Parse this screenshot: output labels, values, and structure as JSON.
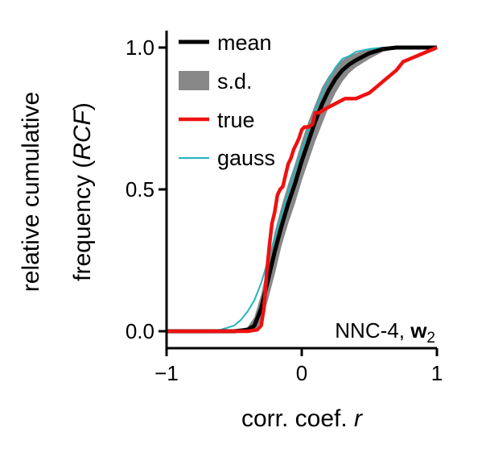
{
  "chart_data": {
    "type": "line",
    "xlabel_main": "corr. coef. ",
    "xlabel_var": "r",
    "ylabel_line1": "relative cumulative",
    "ylabel_line2_pre": "frequency (",
    "ylabel_line2_var": "RCF",
    "ylabel_line2_post": ")",
    "xlim": [
      -1,
      1
    ],
    "ylim": [
      -0.05,
      1.05
    ],
    "xticks": [
      -1,
      0,
      1
    ],
    "xtick_labels": [
      "−1",
      "0",
      "1"
    ],
    "yticks": [
      0.0,
      0.5,
      1.0
    ],
    "ytick_labels": [
      "0.0",
      "0.5",
      "1.0"
    ],
    "grid": false,
    "legend_position": "top-left",
    "annotation_text": "NNC-4, ",
    "annotation_bold": "w",
    "annotation_sub": "2",
    "colors": {
      "mean": "#000000",
      "sd": "#888888",
      "true": "#ee1111",
      "gauss": "#22b5c0"
    },
    "legend": [
      {
        "key": "mean",
        "label": "mean"
      },
      {
        "key": "sd",
        "label": "s.d."
      },
      {
        "key": "true",
        "label": "true"
      },
      {
        "key": "gauss",
        "label": "gauss"
      }
    ],
    "series": [
      {
        "name": "mean",
        "x": [
          -1,
          -0.5,
          -0.4,
          -0.35,
          -0.3,
          -0.25,
          -0.2,
          -0.15,
          -0.1,
          -0.05,
          0,
          0.05,
          0.1,
          0.15,
          0.2,
          0.25,
          0.3,
          0.35,
          0.4,
          0.5,
          0.6,
          0.7,
          1
        ],
        "y": [
          0,
          0,
          0.005,
          0.02,
          0.08,
          0.18,
          0.28,
          0.37,
          0.45,
          0.52,
          0.6,
          0.67,
          0.74,
          0.8,
          0.85,
          0.89,
          0.92,
          0.94,
          0.955,
          0.98,
          0.995,
          1.0,
          1.0
        ]
      },
      {
        "name": "s.d. upper",
        "x": [
          -1,
          -0.5,
          -0.4,
          -0.35,
          -0.3,
          -0.25,
          -0.2,
          -0.15,
          -0.1,
          -0.05,
          0,
          0.05,
          0.1,
          0.15,
          0.2,
          0.25,
          0.3,
          0.35,
          0.4,
          0.5,
          0.6,
          0.7,
          1
        ],
        "y": [
          0,
          0,
          0.015,
          0.05,
          0.13,
          0.24,
          0.35,
          0.44,
          0.52,
          0.59,
          0.67,
          0.74,
          0.8,
          0.86,
          0.9,
          0.93,
          0.955,
          0.97,
          0.98,
          0.995,
          1.0,
          1.0,
          1.0
        ]
      },
      {
        "name": "s.d. lower",
        "x": [
          -1,
          -0.5,
          -0.4,
          -0.35,
          -0.3,
          -0.25,
          -0.2,
          -0.15,
          -0.1,
          -0.05,
          0,
          0.05,
          0.1,
          0.15,
          0.2,
          0.25,
          0.3,
          0.35,
          0.4,
          0.5,
          0.6,
          0.7,
          1
        ],
        "y": [
          0,
          0,
          0,
          0.005,
          0.03,
          0.11,
          0.2,
          0.3,
          0.38,
          0.45,
          0.53,
          0.6,
          0.67,
          0.73,
          0.79,
          0.84,
          0.88,
          0.91,
          0.93,
          0.96,
          0.985,
          0.995,
          1.0
        ]
      },
      {
        "name": "true",
        "x": [
          -1,
          -0.4,
          -0.33,
          -0.3,
          -0.28,
          -0.26,
          -0.24,
          -0.22,
          -0.2,
          -0.18,
          -0.16,
          -0.14,
          -0.12,
          -0.1,
          -0.08,
          -0.06,
          -0.04,
          -0.02,
          0,
          0.02,
          0.05,
          0.08,
          0.1,
          0.13,
          0.16,
          0.2,
          0.24,
          0.28,
          0.32,
          0.36,
          0.4,
          0.45,
          0.5,
          0.55,
          0.6,
          0.65,
          0.7,
          0.75,
          0.8,
          0.85,
          0.9,
          0.95,
          1
        ],
        "y": [
          0,
          0,
          0.005,
          0.02,
          0.08,
          0.2,
          0.3,
          0.38,
          0.42,
          0.48,
          0.5,
          0.51,
          0.55,
          0.59,
          0.61,
          0.64,
          0.66,
          0.68,
          0.71,
          0.72,
          0.72,
          0.73,
          0.77,
          0.77,
          0.78,
          0.79,
          0.8,
          0.81,
          0.82,
          0.82,
          0.82,
          0.83,
          0.84,
          0.86,
          0.88,
          0.9,
          0.92,
          0.95,
          0.96,
          0.97,
          0.98,
          0.99,
          1.0
        ]
      },
      {
        "name": "gauss",
        "x": [
          -1,
          -0.7,
          -0.6,
          -0.5,
          -0.45,
          -0.4,
          -0.35,
          -0.3,
          -0.25,
          -0.2,
          -0.15,
          -0.1,
          -0.05,
          0,
          0.05,
          0.1,
          0.15,
          0.2,
          0.25,
          0.3,
          0.35,
          0.4,
          0.5,
          0.6,
          0.7,
          1
        ],
        "y": [
          0,
          0.001,
          0.005,
          0.02,
          0.04,
          0.07,
          0.11,
          0.17,
          0.25,
          0.33,
          0.41,
          0.49,
          0.57,
          0.64,
          0.71,
          0.78,
          0.84,
          0.89,
          0.93,
          0.96,
          0.97,
          0.985,
          0.995,
          1.0,
          1.0,
          1.0
        ]
      }
    ]
  }
}
